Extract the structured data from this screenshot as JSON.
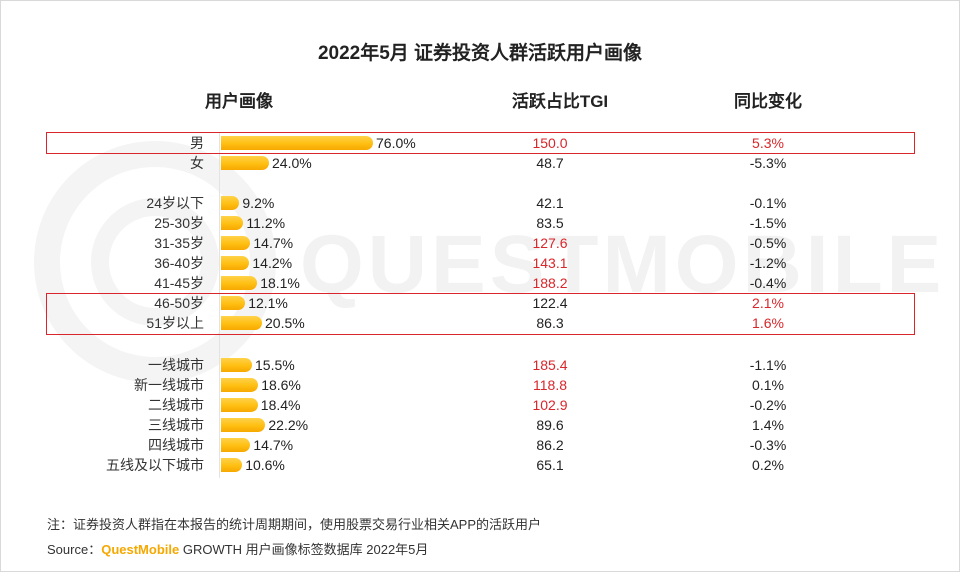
{
  "title": "2022年5月 证券投资人群活跃用户画像",
  "headers": {
    "profile": "用户画像",
    "tgi": "活跃占比TGI",
    "yoy": "同比变化"
  },
  "watermark": "QUESTMOBILE",
  "colors": {
    "bar": "#ffbf12",
    "highlight_red": "#d9262b",
    "text": "#222222"
  },
  "chart_data": {
    "type": "bar",
    "orientation": "horizontal",
    "xlim": [
      0,
      100
    ],
    "groups": [
      {
        "name": "gender",
        "categories": [
          "男",
          "女"
        ]
      },
      {
        "name": "age",
        "categories": [
          "24岁以下",
          "25-30岁",
          "31-35岁",
          "36-40岁",
          "41-45岁",
          "46-50岁",
          "51岁以上"
        ]
      },
      {
        "name": "city",
        "categories": [
          "一线城市",
          "新一线城市",
          "二线城市",
          "三线城市",
          "四线城市",
          "五线及以下城市"
        ]
      }
    ],
    "rows": [
      {
        "label": "男",
        "value": 76.0,
        "value_label": "76.0%",
        "tgi": "150.0",
        "tgi_red": true,
        "yoy": "5.3%",
        "yoy_red": true
      },
      {
        "label": "女",
        "value": 24.0,
        "value_label": "24.0%",
        "tgi": "48.7",
        "tgi_red": false,
        "yoy": "-5.3%",
        "yoy_red": false
      },
      {
        "label": "24岁以下",
        "value": 9.2,
        "value_label": "9.2%",
        "tgi": "42.1",
        "tgi_red": false,
        "yoy": "-0.1%",
        "yoy_red": false
      },
      {
        "label": "25-30岁",
        "value": 11.2,
        "value_label": "11.2%",
        "tgi": "83.5",
        "tgi_red": false,
        "yoy": "-1.5%",
        "yoy_red": false
      },
      {
        "label": "31-35岁",
        "value": 14.7,
        "value_label": "14.7%",
        "tgi": "127.6",
        "tgi_red": true,
        "yoy": "-0.5%",
        "yoy_red": false
      },
      {
        "label": "36-40岁",
        "value": 14.2,
        "value_label": "14.2%",
        "tgi": "143.1",
        "tgi_red": true,
        "yoy": "-1.2%",
        "yoy_red": false
      },
      {
        "label": "41-45岁",
        "value": 18.1,
        "value_label": "18.1%",
        "tgi": "188.2",
        "tgi_red": true,
        "yoy": "-0.4%",
        "yoy_red": false
      },
      {
        "label": "46-50岁",
        "value": 12.1,
        "value_label": "12.1%",
        "tgi": "122.4",
        "tgi_red": false,
        "yoy": "2.1%",
        "yoy_red": true
      },
      {
        "label": "51岁以上",
        "value": 20.5,
        "value_label": "20.5%",
        "tgi": "86.3",
        "tgi_red": false,
        "yoy": "1.6%",
        "yoy_red": true
      },
      {
        "label": "一线城市",
        "value": 15.5,
        "value_label": "15.5%",
        "tgi": "185.4",
        "tgi_red": true,
        "yoy": "-1.1%",
        "yoy_red": false
      },
      {
        "label": "新一线城市",
        "value": 18.6,
        "value_label": "18.6%",
        "tgi": "118.8",
        "tgi_red": true,
        "yoy": "0.1%",
        "yoy_red": false
      },
      {
        "label": "二线城市",
        "value": 18.4,
        "value_label": "18.4%",
        "tgi": "102.9",
        "tgi_red": true,
        "yoy": "-0.2%",
        "yoy_red": false
      },
      {
        "label": "三线城市",
        "value": 22.2,
        "value_label": "22.2%",
        "tgi": "89.6",
        "tgi_red": false,
        "yoy": "1.4%",
        "yoy_red": false
      },
      {
        "label": "四线城市",
        "value": 14.7,
        "value_label": "14.7%",
        "tgi": "86.2",
        "tgi_red": false,
        "yoy": "-0.3%",
        "yoy_red": false
      },
      {
        "label": "五线及以下城市",
        "value": 10.6,
        "value_label": "10.6%",
        "tgi": "65.1",
        "tgi_red": false,
        "yoy": "0.2%",
        "yoy_red": false
      }
    ],
    "highlighted_rows": [
      "男",
      "46-50岁",
      "51岁以上"
    ]
  },
  "footer": {
    "note": "注：证券投资人群指在本报告的统计周期期间，使用股票交易行业相关APP的活跃用户",
    "source_label": "Source：",
    "source_brand": "QuestMobile",
    "source_rest": " GROWTH 用户画像标签数据库 2022年5月"
  }
}
